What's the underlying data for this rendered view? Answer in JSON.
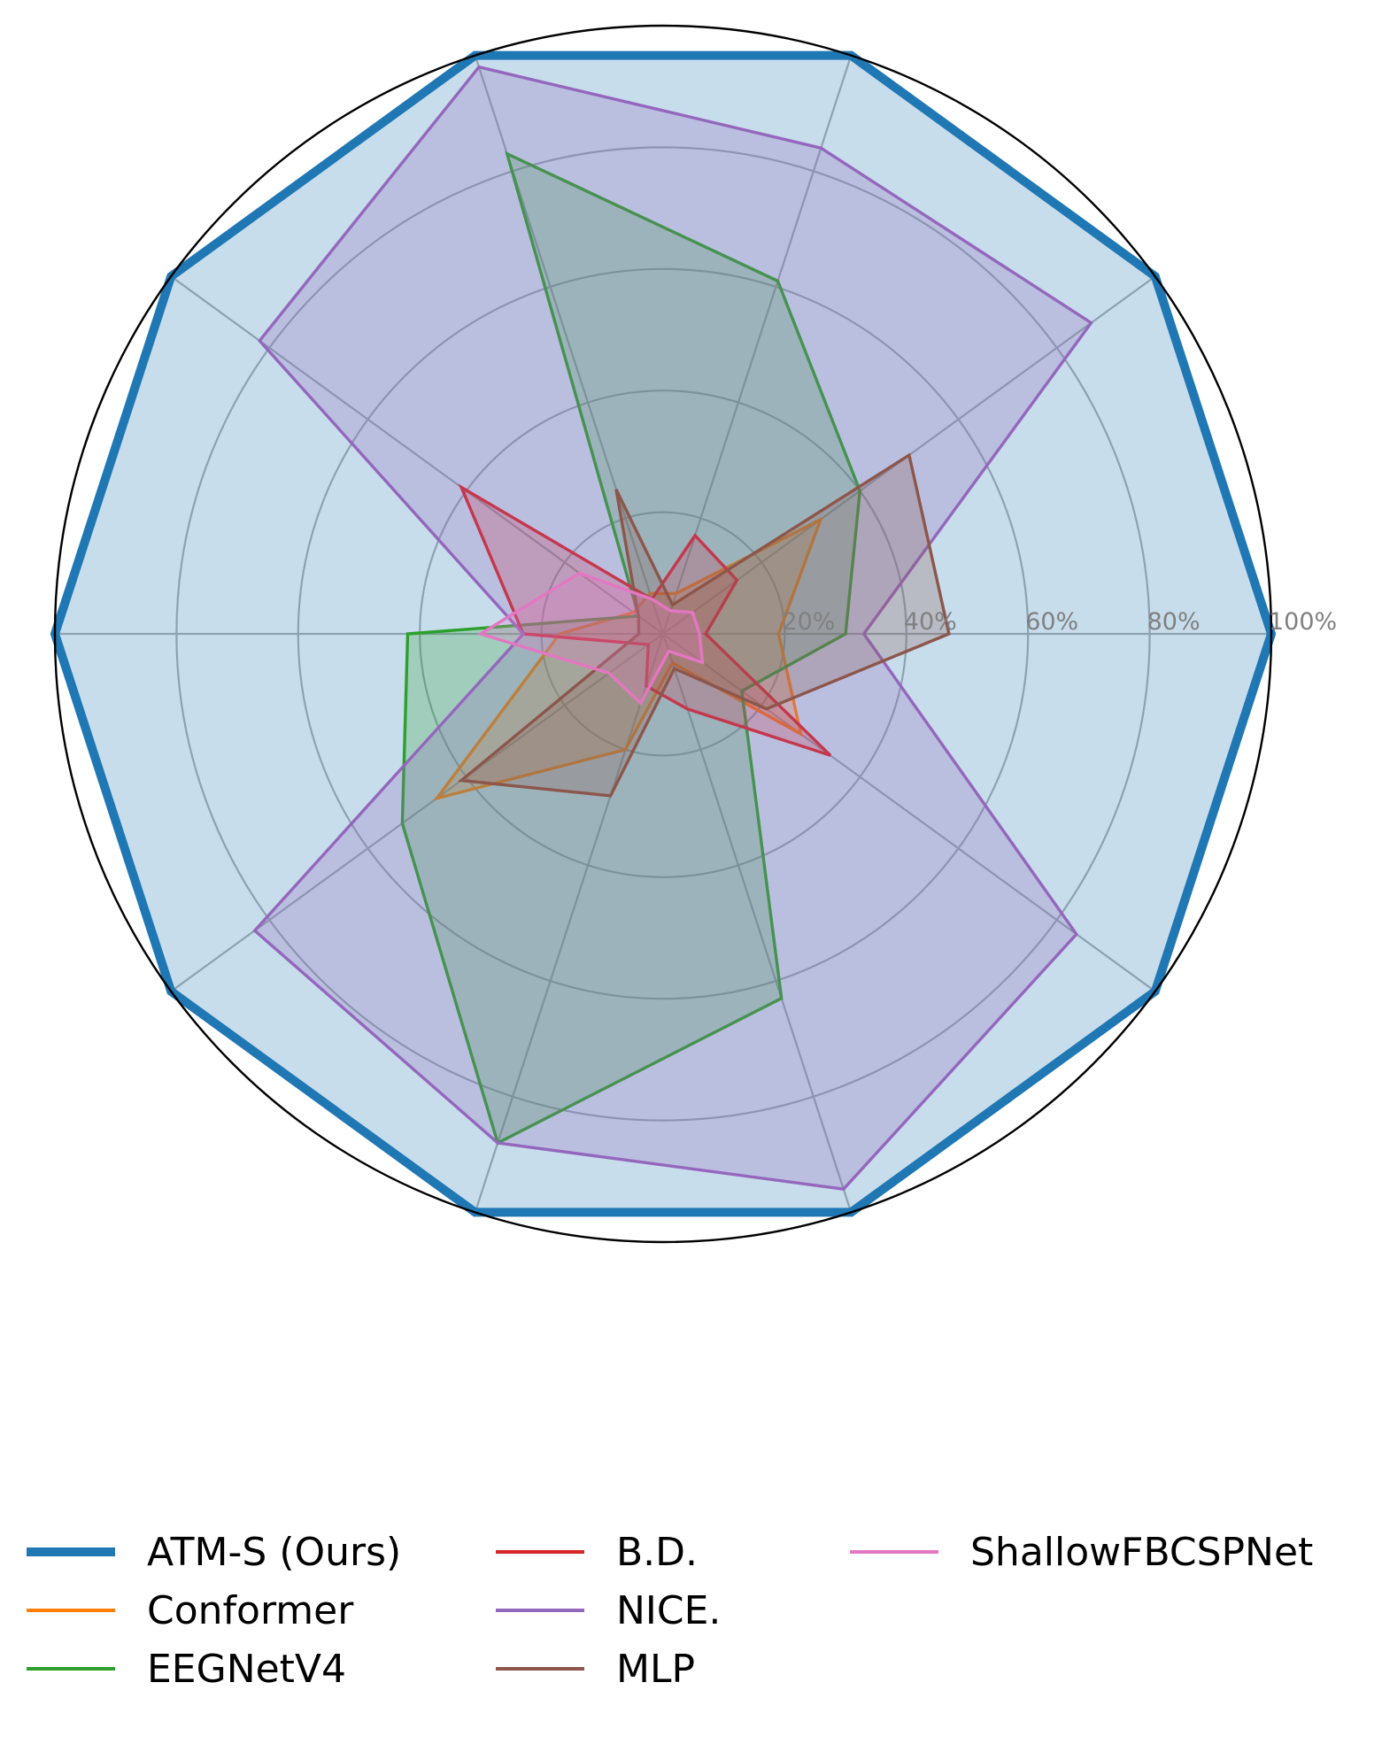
{
  "chart_data": {
    "type": "radar",
    "title": "",
    "axes_count": 10,
    "rlim": [
      0,
      100
    ],
    "radial_tick_labels": [
      "20%",
      "40%",
      "60%",
      "80%",
      "100%"
    ],
    "radial_tick_values": [
      20,
      40,
      60,
      80,
      100
    ],
    "grid": true,
    "legend": "bottom",
    "series": [
      {
        "name": "ATM-S (Ours)",
        "color": "#1f77b4",
        "fill": true,
        "values": [
          100,
          100,
          100,
          100,
          100,
          100,
          100,
          100,
          100,
          100
        ]
      },
      {
        "name": "Conformer",
        "color": "#ff7f0e",
        "fill": true,
        "values": [
          19,
          32,
          7,
          7,
          6,
          17,
          46,
          20,
          5,
          28
        ]
      },
      {
        "name": "EEGNetV4",
        "color": "#2ca02c",
        "fill": true,
        "values": [
          30,
          40,
          61,
          83,
          5,
          42,
          53,
          88,
          63,
          16
        ]
      },
      {
        "name": "B.D.",
        "color": "#d62728",
        "fill": true,
        "values": [
          7,
          15,
          17,
          6,
          41,
          23,
          3,
          9,
          13,
          34
        ]
      },
      {
        "name": "NICE.",
        "color": "#9467bd",
        "fill": true,
        "values": [
          33,
          87,
          84,
          98,
          82,
          23,
          83,
          88,
          96,
          84
        ]
      },
      {
        "name": "MLP",
        "color": "#8c564b",
        "fill": true,
        "values": [
          47,
          50,
          5,
          25,
          5,
          4,
          41,
          28,
          6,
          21
        ]
      },
      {
        "name": "ShallowFBCSPNet",
        "color": "#e377c2",
        "fill": true,
        "values": [
          6,
          6,
          4,
          6,
          17,
          30,
          11,
          12,
          3,
          8
        ]
      }
    ]
  }
}
